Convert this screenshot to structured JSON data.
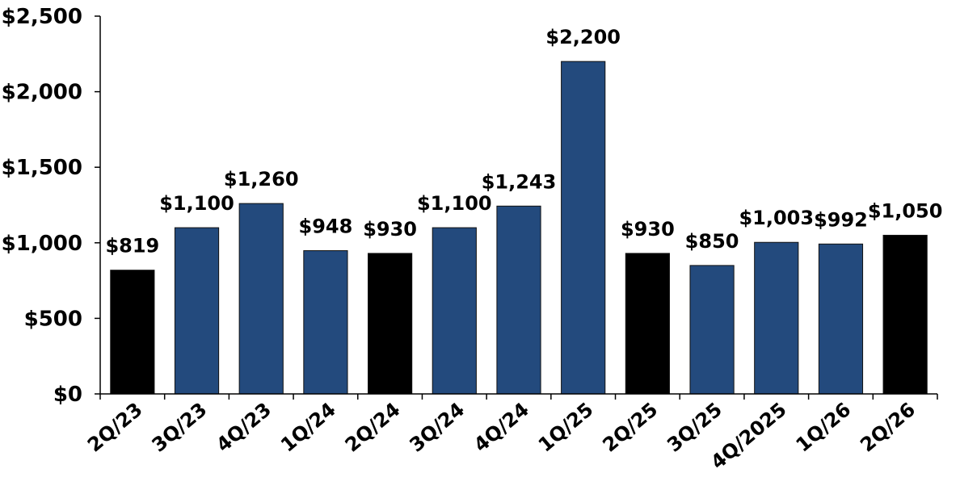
{
  "chart_data": {
    "type": "bar",
    "title": "",
    "xlabel": "",
    "ylabel": "",
    "ylim": [
      0,
      2500
    ],
    "yticks": [
      0,
      500,
      1000,
      1500,
      2000,
      2500
    ],
    "ytick_labels": [
      "$0",
      "$500",
      "$1,000",
      "$1,500",
      "$2,000",
      "$2,500"
    ],
    "grid": false,
    "legend": "none",
    "categories": [
      "2Q/23",
      "3Q/23",
      "4Q/23",
      "1Q/24",
      "2Q/24",
      "3Q/24",
      "4Q/24",
      "1Q/25",
      "2Q/25",
      "3Q/25",
      "4Q/2025",
      "1Q/26",
      "2Q/26"
    ],
    "values": [
      819,
      1100,
      1260,
      948,
      930,
      1100,
      1243,
      2200,
      930,
      850,
      1003,
      992,
      1050
    ],
    "data_labels": [
      "$819",
      "$1,100",
      "$1,260",
      "$948",
      "$930",
      "$1,100",
      "$1,243",
      "$2,200",
      "$930",
      "$850",
      "$1,003",
      "$992",
      "$1,050"
    ],
    "bar_colors": [
      "#000000",
      "#234a7d",
      "#234a7d",
      "#234a7d",
      "#000000",
      "#234a7d",
      "#234a7d",
      "#234a7d",
      "#000000",
      "#234a7d",
      "#234a7d",
      "#234a7d",
      "#000000"
    ]
  }
}
